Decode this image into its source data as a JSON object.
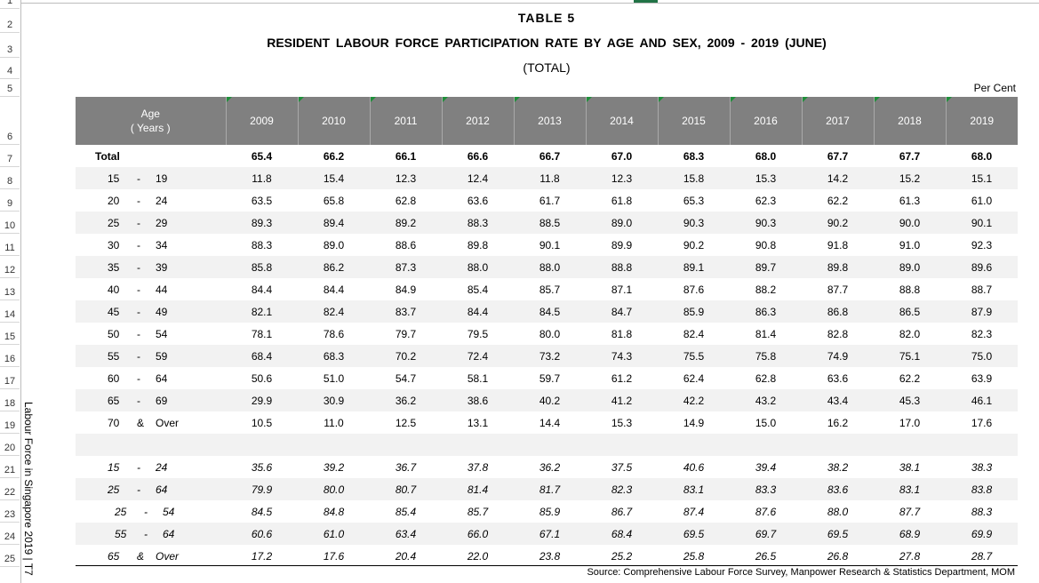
{
  "table": {
    "title": "TABLE 5",
    "subtitle": "RESIDENT LABOUR FORCE PARTICIPATION RATE BY AGE AND SEX, 2009 - 2019 (JUNE)",
    "subsubtitle": "(TOTAL)",
    "unit": "Per Cent",
    "age_header": [
      "Age",
      "( Years )"
    ],
    "years": [
      "2009",
      "2010",
      "2011",
      "2012",
      "2013",
      "2014",
      "2015",
      "2016",
      "2017",
      "2018",
      "2019"
    ],
    "rows": [
      {
        "age": [
          "Total"
        ],
        "values": [
          "65.4",
          "66.2",
          "66.1",
          "66.6",
          "66.7",
          "67.0",
          "68.3",
          "68.0",
          "67.7",
          "67.7",
          "68.0"
        ]
      },
      {
        "age": [
          "15",
          "-",
          "19"
        ],
        "values": [
          "11.8",
          "15.4",
          "12.3",
          "12.4",
          "11.8",
          "12.3",
          "15.8",
          "15.3",
          "14.2",
          "15.2",
          "15.1"
        ]
      },
      {
        "age": [
          "20",
          "-",
          "24"
        ],
        "values": [
          "63.5",
          "65.8",
          "62.8",
          "63.6",
          "61.7",
          "61.8",
          "65.3",
          "62.3",
          "62.2",
          "61.3",
          "61.0"
        ]
      },
      {
        "age": [
          "25",
          "-",
          "29"
        ],
        "values": [
          "89.3",
          "89.4",
          "89.2",
          "88.3",
          "88.5",
          "89.0",
          "90.3",
          "90.3",
          "90.2",
          "90.0",
          "90.1"
        ]
      },
      {
        "age": [
          "30",
          "-",
          "34"
        ],
        "values": [
          "88.3",
          "89.0",
          "88.6",
          "89.8",
          "90.1",
          "89.9",
          "90.2",
          "90.8",
          "91.8",
          "91.0",
          "92.3"
        ]
      },
      {
        "age": [
          "35",
          "-",
          "39"
        ],
        "values": [
          "85.8",
          "86.2",
          "87.3",
          "88.0",
          "88.0",
          "88.8",
          "89.1",
          "89.7",
          "89.8",
          "89.0",
          "89.6"
        ]
      },
      {
        "age": [
          "40",
          "-",
          "44"
        ],
        "values": [
          "84.4",
          "84.4",
          "84.9",
          "85.4",
          "85.7",
          "87.1",
          "87.6",
          "88.2",
          "87.7",
          "88.8",
          "88.7"
        ]
      },
      {
        "age": [
          "45",
          "-",
          "49"
        ],
        "values": [
          "82.1",
          "82.4",
          "83.7",
          "84.4",
          "84.5",
          "84.7",
          "85.9",
          "86.3",
          "86.8",
          "86.5",
          "87.9"
        ]
      },
      {
        "age": [
          "50",
          "-",
          "54"
        ],
        "values": [
          "78.1",
          "78.6",
          "79.7",
          "79.5",
          "80.0",
          "81.8",
          "82.4",
          "81.4",
          "82.8",
          "82.0",
          "82.3"
        ]
      },
      {
        "age": [
          "55",
          "-",
          "59"
        ],
        "values": [
          "68.4",
          "68.3",
          "70.2",
          "72.4",
          "73.2",
          "74.3",
          "75.5",
          "75.8",
          "74.9",
          "75.1",
          "75.0"
        ]
      },
      {
        "age": [
          "60",
          "-",
          "64"
        ],
        "values": [
          "50.6",
          "51.0",
          "54.7",
          "58.1",
          "59.7",
          "61.2",
          "62.4",
          "62.8",
          "63.6",
          "62.2",
          "63.9"
        ]
      },
      {
        "age": [
          "65",
          "-",
          "69"
        ],
        "values": [
          "29.9",
          "30.9",
          "36.2",
          "38.6",
          "40.2",
          "41.2",
          "42.2",
          "43.2",
          "43.4",
          "45.3",
          "46.1"
        ]
      },
      {
        "age": [
          "70",
          "&",
          "Over"
        ],
        "values": [
          "10.5",
          "11.0",
          "12.5",
          "13.1",
          "14.4",
          "15.3",
          "14.9",
          "15.0",
          "16.2",
          "17.0",
          "17.6"
        ]
      },
      {
        "age": [],
        "values": [
          "",
          "",
          "",
          "",
          "",
          "",
          "",
          "",
          "",
          "",
          ""
        ]
      },
      {
        "age": [
          "15",
          "-",
          "24"
        ],
        "values": [
          "35.6",
          "39.2",
          "36.7",
          "37.8",
          "36.2",
          "37.5",
          "40.6",
          "39.4",
          "38.2",
          "38.1",
          "38.3"
        ]
      },
      {
        "age": [
          "25",
          "-",
          "64"
        ],
        "values": [
          "79.9",
          "80.0",
          "80.7",
          "81.4",
          "81.7",
          "82.3",
          "83.1",
          "83.3",
          "83.6",
          "83.1",
          "83.8"
        ]
      },
      {
        "age": [
          "25",
          "-",
          "54"
        ],
        "values": [
          "84.5",
          "84.8",
          "85.4",
          "85.7",
          "85.9",
          "86.7",
          "87.4",
          "87.6",
          "88.0",
          "87.7",
          "88.3"
        ]
      },
      {
        "age": [
          "55",
          "-",
          "64"
        ],
        "values": [
          "60.6",
          "61.0",
          "63.4",
          "66.0",
          "67.1",
          "68.4",
          "69.5",
          "69.7",
          "69.5",
          "68.9",
          "69.9"
        ]
      },
      {
        "age": [
          "65",
          "&",
          "Over"
        ],
        "values": [
          "17.2",
          "17.6",
          "20.4",
          "22.0",
          "23.8",
          "25.2",
          "25.8",
          "26.5",
          "26.8",
          "27.8",
          "28.7"
        ]
      }
    ],
    "source": "Source:  Comprehensive Labour Force Survey, Manpower Research & Statistics Department, MOM",
    "side_label": "Labour Force in Singapore 2019 | T7"
  },
  "row_numbers": [
    "1",
    "2",
    "3",
    "4",
    "5",
    "6",
    "7",
    "8",
    "9",
    "10",
    "11",
    "12",
    "13",
    "14",
    "15",
    "16",
    "17",
    "18",
    "19",
    "20",
    "21",
    "22",
    "23",
    "24",
    "25"
  ]
}
